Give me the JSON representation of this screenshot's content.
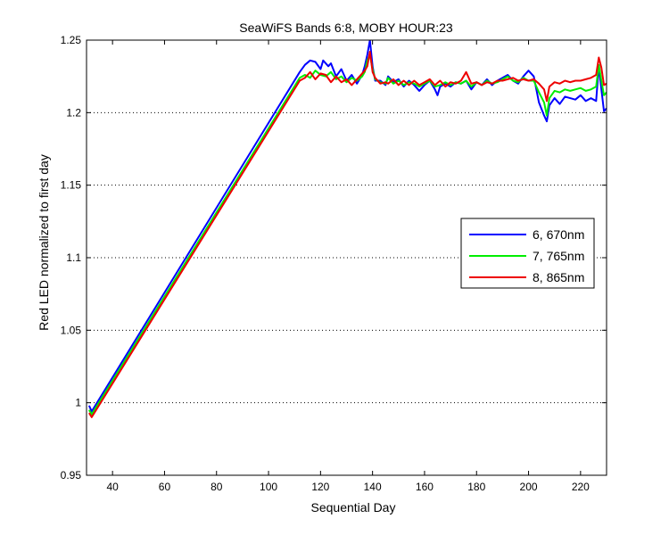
{
  "chart_data": {
    "type": "line",
    "title": "SeaWiFS Bands 6:8, MOBY HOUR:23",
    "xlabel": "Sequential Day",
    "ylabel": "Red LED normalized to first day",
    "xlim": [
      30,
      230
    ],
    "ylim": [
      0.95,
      1.25
    ],
    "x_ticks": [
      40,
      60,
      80,
      100,
      120,
      140,
      160,
      180,
      200,
      220
    ],
    "y_ticks": [
      0.95,
      1.0,
      1.05,
      1.1,
      1.15,
      1.2,
      1.25
    ],
    "y_tick_labels": [
      "0.95",
      "1",
      "1.05",
      "1.1",
      "1.15",
      "1.2",
      "1.25"
    ],
    "grid": "y-dotted",
    "legend_position": "right",
    "series": [
      {
        "name": "6, 670nm",
        "color": "#0000ff",
        "points": [
          [
            31,
            0.998
          ],
          [
            32,
            0.994
          ],
          [
            112,
            1.228
          ],
          [
            114,
            1.233
          ],
          [
            116,
            1.236
          ],
          [
            118,
            1.235
          ],
          [
            120,
            1.23
          ],
          [
            121,
            1.236
          ],
          [
            123,
            1.232
          ],
          [
            124,
            1.234
          ],
          [
            126,
            1.225
          ],
          [
            128,
            1.23
          ],
          [
            130,
            1.222
          ],
          [
            132,
            1.226
          ],
          [
            134,
            1.22
          ],
          [
            136,
            1.226
          ],
          [
            137,
            1.232
          ],
          [
            138,
            1.24
          ],
          [
            139,
            1.25
          ],
          [
            140,
            1.232
          ],
          [
            141,
            1.222
          ],
          [
            143,
            1.222
          ],
          [
            145,
            1.219
          ],
          [
            146,
            1.225
          ],
          [
            148,
            1.221
          ],
          [
            150,
            1.223
          ],
          [
            152,
            1.218
          ],
          [
            154,
            1.222
          ],
          [
            156,
            1.219
          ],
          [
            158,
            1.215
          ],
          [
            160,
            1.219
          ],
          [
            162,
            1.222
          ],
          [
            164,
            1.216
          ],
          [
            165,
            1.212
          ],
          [
            166,
            1.218
          ],
          [
            168,
            1.22
          ],
          [
            170,
            1.218
          ],
          [
            172,
            1.221
          ],
          [
            174,
            1.22
          ],
          [
            176,
            1.222
          ],
          [
            178,
            1.216
          ],
          [
            180,
            1.221
          ],
          [
            182,
            1.219
          ],
          [
            184,
            1.223
          ],
          [
            186,
            1.219
          ],
          [
            188,
            1.222
          ],
          [
            190,
            1.224
          ],
          [
            192,
            1.226
          ],
          [
            194,
            1.222
          ],
          [
            196,
            1.22
          ],
          [
            198,
            1.225
          ],
          [
            200,
            1.229
          ],
          [
            202,
            1.225
          ],
          [
            204,
            1.207
          ],
          [
            206,
            1.198
          ],
          [
            207,
            1.194
          ],
          [
            208,
            1.205
          ],
          [
            210,
            1.21
          ],
          [
            212,
            1.206
          ],
          [
            214,
            1.211
          ],
          [
            216,
            1.21
          ],
          [
            218,
            1.209
          ],
          [
            220,
            1.212
          ],
          [
            222,
            1.208
          ],
          [
            224,
            1.21
          ],
          [
            226,
            1.208
          ],
          [
            227,
            1.232
          ],
          [
            228,
            1.216
          ],
          [
            229,
            1.201
          ],
          [
            230,
            1.203
          ]
        ]
      },
      {
        "name": "7, 765nm",
        "color": "#00ee00",
        "points": [
          [
            31,
            0.995
          ],
          [
            32,
            0.992
          ],
          [
            112,
            1.224
          ],
          [
            114,
            1.226
          ],
          [
            116,
            1.224
          ],
          [
            118,
            1.229
          ],
          [
            120,
            1.226
          ],
          [
            122,
            1.225
          ],
          [
            124,
            1.228
          ],
          [
            126,
            1.223
          ],
          [
            128,
            1.225
          ],
          [
            130,
            1.221
          ],
          [
            132,
            1.224
          ],
          [
            134,
            1.222
          ],
          [
            136,
            1.225
          ],
          [
            137,
            1.228
          ],
          [
            138,
            1.236
          ],
          [
            139,
            1.24
          ],
          [
            140,
            1.23
          ],
          [
            141,
            1.223
          ],
          [
            143,
            1.221
          ],
          [
            145,
            1.22
          ],
          [
            146,
            1.224
          ],
          [
            148,
            1.22
          ],
          [
            150,
            1.222
          ],
          [
            152,
            1.219
          ],
          [
            154,
            1.221
          ],
          [
            156,
            1.22
          ],
          [
            158,
            1.218
          ],
          [
            160,
            1.22
          ],
          [
            162,
            1.222
          ],
          [
            164,
            1.218
          ],
          [
            166,
            1.219
          ],
          [
            168,
            1.221
          ],
          [
            170,
            1.219
          ],
          [
            172,
            1.221
          ],
          [
            174,
            1.22
          ],
          [
            176,
            1.222
          ],
          [
            178,
            1.218
          ],
          [
            180,
            1.221
          ],
          [
            182,
            1.219
          ],
          [
            184,
            1.222
          ],
          [
            186,
            1.22
          ],
          [
            188,
            1.221
          ],
          [
            190,
            1.223
          ],
          [
            192,
            1.225
          ],
          [
            194,
            1.222
          ],
          [
            196,
            1.221
          ],
          [
            198,
            1.224
          ],
          [
            200,
            1.222
          ],
          [
            202,
            1.222
          ],
          [
            204,
            1.214
          ],
          [
            206,
            1.207
          ],
          [
            207,
            1.198
          ],
          [
            208,
            1.21
          ],
          [
            210,
            1.215
          ],
          [
            212,
            1.214
          ],
          [
            214,
            1.216
          ],
          [
            216,
            1.215
          ],
          [
            218,
            1.216
          ],
          [
            220,
            1.217
          ],
          [
            222,
            1.215
          ],
          [
            224,
            1.216
          ],
          [
            226,
            1.218
          ],
          [
            227,
            1.233
          ],
          [
            228,
            1.222
          ],
          [
            229,
            1.212
          ],
          [
            230,
            1.214
          ]
        ]
      },
      {
        "name": "8, 865nm",
        "color": "#ee0000",
        "points": [
          [
            31,
            0.993
          ],
          [
            32,
            0.99
          ],
          [
            112,
            1.222
          ],
          [
            114,
            1.224
          ],
          [
            116,
            1.228
          ],
          [
            118,
            1.223
          ],
          [
            120,
            1.227
          ],
          [
            122,
            1.226
          ],
          [
            124,
            1.221
          ],
          [
            126,
            1.225
          ],
          [
            128,
            1.221
          ],
          [
            130,
            1.223
          ],
          [
            132,
            1.219
          ],
          [
            134,
            1.223
          ],
          [
            136,
            1.227
          ],
          [
            137,
            1.229
          ],
          [
            138,
            1.232
          ],
          [
            139,
            1.242
          ],
          [
            140,
            1.228
          ],
          [
            141,
            1.224
          ],
          [
            143,
            1.22
          ],
          [
            145,
            1.221
          ],
          [
            146,
            1.22
          ],
          [
            148,
            1.223
          ],
          [
            150,
            1.219
          ],
          [
            152,
            1.222
          ],
          [
            154,
            1.219
          ],
          [
            156,
            1.222
          ],
          [
            158,
            1.219
          ],
          [
            160,
            1.221
          ],
          [
            162,
            1.223
          ],
          [
            164,
            1.219
          ],
          [
            166,
            1.222
          ],
          [
            168,
            1.218
          ],
          [
            170,
            1.221
          ],
          [
            172,
            1.22
          ],
          [
            174,
            1.222
          ],
          [
            176,
            1.228
          ],
          [
            178,
            1.22
          ],
          [
            180,
            1.221
          ],
          [
            182,
            1.219
          ],
          [
            184,
            1.221
          ],
          [
            186,
            1.22
          ],
          [
            188,
            1.222
          ],
          [
            190,
            1.222
          ],
          [
            192,
            1.223
          ],
          [
            194,
            1.224
          ],
          [
            196,
            1.222
          ],
          [
            198,
            1.223
          ],
          [
            200,
            1.222
          ],
          [
            202,
            1.223
          ],
          [
            204,
            1.22
          ],
          [
            206,
            1.216
          ],
          [
            207,
            1.208
          ],
          [
            208,
            1.218
          ],
          [
            210,
            1.221
          ],
          [
            212,
            1.22
          ],
          [
            214,
            1.222
          ],
          [
            216,
            1.221
          ],
          [
            218,
            1.222
          ],
          [
            220,
            1.222
          ],
          [
            222,
            1.223
          ],
          [
            224,
            1.224
          ],
          [
            226,
            1.226
          ],
          [
            227,
            1.238
          ],
          [
            228,
            1.231
          ],
          [
            229,
            1.219
          ],
          [
            230,
            1.22
          ]
        ]
      }
    ]
  }
}
